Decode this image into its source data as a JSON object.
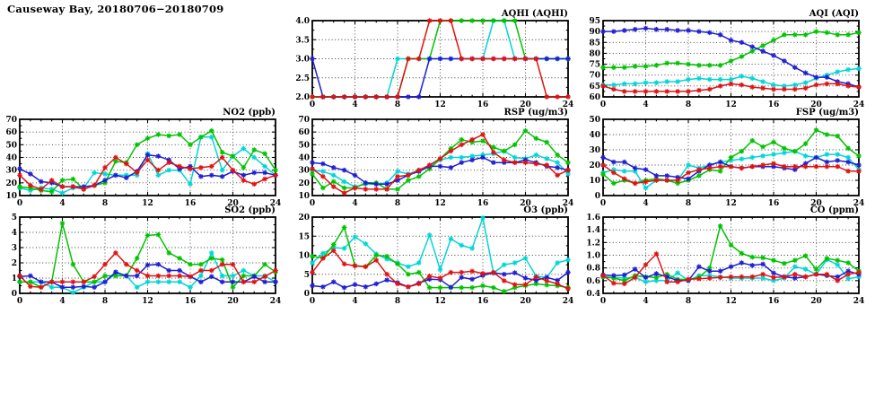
{
  "page": {
    "title": "Causeway Bay, 20180706−20180709"
  },
  "palette": {
    "blue": "#1f1fd1",
    "red": "#e01212",
    "green": "#00c300",
    "cyan": "#00d6d6"
  },
  "series_order": [
    "cyan",
    "green",
    "blue",
    "red"
  ],
  "x": {
    "lim": [
      0,
      24
    ],
    "ticks": [
      0,
      4,
      8,
      12,
      16,
      20,
      24
    ],
    "unit": "hour"
  },
  "chart_data": [
    {
      "id": "aqhi",
      "type": "line",
      "title": "AQHI (AQHI)",
      "ylim": [
        2,
        4
      ],
      "yticks": [
        2,
        2.5,
        3,
        3.5,
        4
      ],
      "ydec": 1,
      "series": {
        "blue": [
          3,
          2,
          2,
          2,
          2,
          2,
          2,
          2,
          2,
          2,
          2,
          3,
          3,
          3,
          3,
          3,
          3,
          3,
          3,
          3,
          3,
          3,
          3,
          3,
          3
        ],
        "red": [
          2,
          2,
          2,
          2,
          2,
          2,
          2,
          2,
          2,
          3,
          3,
          4,
          4,
          4,
          3,
          3,
          3,
          3,
          3,
          3,
          3,
          3,
          2,
          2,
          2
        ],
        "green": [
          2,
          2,
          2,
          2,
          2,
          2,
          2,
          2,
          2,
          3,
          3,
          3,
          4,
          4,
          4,
          4,
          4,
          4,
          4,
          4,
          3,
          3,
          3,
          3,
          3
        ],
        "cyan": [
          2,
          2,
          2,
          2,
          2,
          2,
          2,
          2,
          3,
          3,
          3,
          3,
          3,
          3,
          3,
          3,
          3,
          4,
          4,
          3,
          3,
          3,
          3,
          3,
          3
        ]
      }
    },
    {
      "id": "aqi",
      "type": "line",
      "title": "AQI (AQI)",
      "ylim": [
        60,
        95
      ],
      "yticks": [
        60,
        65,
        70,
        75,
        80,
        85,
        90,
        95
      ],
      "ydec": 0,
      "series": {
        "blue": [
          90,
          90,
          90.5,
          91,
          91.5,
          91,
          91,
          90.5,
          90.5,
          90,
          89.5,
          88.5,
          86,
          85,
          83,
          81,
          79,
          76.5,
          73.5,
          71,
          69,
          69,
          67,
          66,
          64.5
        ],
        "red": [
          65,
          63.5,
          62.5,
          62.5,
          62.5,
          62.5,
          62.5,
          62.5,
          62.5,
          63,
          63.5,
          65,
          66,
          65.5,
          64.5,
          64,
          63.5,
          63.5,
          63.5,
          64,
          65.5,
          66,
          66,
          65,
          64.5
        ],
        "green": [
          73.5,
          73.5,
          73.5,
          74,
          74,
          74.5,
          75.5,
          75.5,
          75,
          74.5,
          74.5,
          74.5,
          76.5,
          78.5,
          81,
          83.5,
          86,
          88.5,
          88.5,
          88.5,
          90,
          89.5,
          88.5,
          88.5,
          89.5
        ],
        "cyan": [
          65.5,
          65.5,
          66,
          66,
          66.5,
          66.5,
          67,
          67,
          68,
          68.5,
          68,
          68,
          68,
          69.5,
          68.5,
          67,
          65.5,
          65,
          65.5,
          66.5,
          68.5,
          70,
          71.5,
          72.5,
          73
        ]
      }
    },
    {
      "id": "no2",
      "type": "line",
      "title": "NO2 (ppb)",
      "ylim": [
        10,
        70
      ],
      "yticks": [
        10,
        20,
        30,
        40,
        50,
        60,
        70
      ],
      "ydec": 0,
      "series": {
        "blue": [
          31,
          27,
          21,
          20,
          17,
          17,
          17,
          18,
          22,
          26,
          24,
          29,
          42,
          41,
          38,
          31,
          33,
          25,
          26,
          25,
          29,
          26,
          28,
          28,
          26
        ],
        "red": [
          26,
          18,
          15,
          22,
          17,
          17,
          15,
          18,
          32,
          40,
          35,
          28,
          38,
          30,
          36,
          33,
          31,
          32,
          33,
          40,
          30,
          22,
          19,
          23,
          26
        ],
        "green": [
          17,
          16,
          14,
          13,
          22,
          23,
          15,
          18,
          20,
          37,
          36,
          50,
          55,
          58,
          57,
          58,
          50,
          56,
          61,
          44,
          41,
          32,
          46,
          43,
          30
        ],
        "cyan": [
          16,
          14,
          16,
          15,
          12,
          16,
          16,
          28,
          27,
          26,
          26,
          26,
          43,
          26,
          30,
          30,
          19,
          56,
          56,
          30,
          41,
          47,
          40,
          33,
          26
        ]
      }
    },
    {
      "id": "rsp",
      "type": "line",
      "title": "RSP (ug/m3)",
      "ylim": [
        10,
        70
      ],
      "yticks": [
        10,
        20,
        30,
        40,
        50,
        60,
        70
      ],
      "ydec": 0,
      "series": {
        "blue": [
          36,
          35,
          32,
          30,
          26,
          20,
          19,
          19,
          22,
          26,
          29,
          33,
          33,
          32,
          36,
          38,
          40,
          36,
          36,
          36,
          38,
          36,
          33,
          32,
          30
        ],
        "red": [
          31,
          25,
          17,
          12,
          16,
          15,
          15,
          15,
          25,
          26,
          30,
          34,
          39,
          45,
          50,
          54,
          58,
          44,
          38,
          36,
          36,
          35,
          34,
          26,
          30
        ],
        "green": [
          27,
          16,
          21,
          16,
          16,
          20,
          20,
          15,
          15,
          22,
          25,
          31,
          39,
          47,
          54,
          52,
          53,
          48,
          45,
          50,
          61,
          55,
          52,
          42,
          36
        ],
        "cyan": [
          30,
          29,
          26,
          21,
          17,
          19,
          19,
          20,
          29,
          27,
          30,
          33,
          38,
          40,
          40,
          41,
          42,
          43,
          45,
          40,
          39,
          42,
          39,
          36,
          27
        ]
      }
    },
    {
      "id": "fsp",
      "type": "line",
      "title": "FSP (ug/m3)",
      "ylim": [
        0,
        50
      ],
      "yticks": [
        0,
        10,
        20,
        30,
        40,
        50
      ],
      "ydec": 0,
      "series": {
        "blue": [
          25,
          22,
          22,
          18,
          17,
          13,
          13,
          12,
          11,
          16,
          20,
          22,
          19,
          18,
          19,
          19,
          19,
          18,
          17,
          21,
          25,
          22,
          23,
          22,
          20
        ],
        "red": [
          20,
          15,
          11,
          8,
          9,
          10,
          10,
          10,
          15,
          17,
          18,
          19,
          19,
          18,
          19,
          20,
          21,
          19,
          19,
          19,
          19,
          19,
          19,
          16,
          16
        ],
        "green": [
          14,
          8,
          10,
          8,
          10,
          11,
          10,
          8,
          10,
          13,
          17,
          16,
          25,
          29,
          36,
          32,
          35,
          31,
          29,
          34,
          43,
          40,
          39,
          31,
          26
        ],
        "cyan": [
          15,
          17,
          16,
          16,
          5,
          10,
          10,
          10,
          20,
          18,
          20,
          22,
          23,
          24,
          25,
          26,
          27,
          28,
          29,
          26,
          25,
          27,
          27,
          25,
          17
        ]
      }
    },
    {
      "id": "so2",
      "type": "line",
      "title": "SO2 (ppb)",
      "ylim": [
        0,
        5
      ],
      "yticks": [
        0,
        1,
        2,
        3,
        4,
        5
      ],
      "ydec": 0,
      "series": {
        "blue": [
          1.1,
          1.15,
          0.75,
          0.75,
          0.4,
          0.4,
          0.45,
          0.4,
          0.75,
          1.4,
          1.15,
          1.15,
          1.85,
          1.9,
          1.5,
          1.5,
          1.1,
          0.75,
          1.1,
          0.75,
          0.75,
          0.75,
          1.1,
          0.75,
          0.75
        ],
        "red": [
          1.15,
          0.45,
          0.4,
          0.75,
          0.75,
          0.75,
          0.75,
          1.1,
          1.9,
          2.65,
          1.9,
          1.5,
          1.15,
          1.15,
          1.15,
          1.15,
          1.1,
          1.5,
          1.5,
          1.9,
          1.9,
          0.75,
          0.75,
          1.1,
          1.5
        ],
        "green": [
          0.75,
          0.75,
          0.4,
          0.75,
          4.6,
          1.9,
          0.75,
          0.75,
          1.15,
          1.15,
          1.15,
          2.3,
          3.8,
          3.85,
          2.65,
          2.3,
          1.9,
          1.9,
          2.3,
          2.2,
          0.4,
          1.15,
          1.15,
          1.9,
          1.4
        ],
        "cyan": [
          0.75,
          0.75,
          0.75,
          0.4,
          0.4,
          0.05,
          0.4,
          0.75,
          0.75,
          1.3,
          1.15,
          0.4,
          0.75,
          0.75,
          0.75,
          0.75,
          0.4,
          1.15,
          2.65,
          1.15,
          1.15,
          1.5,
          1.15,
          1.15,
          0.75
        ]
      }
    },
    {
      "id": "o3",
      "type": "line",
      "title": "O3 (ppb)",
      "ylim": [
        0,
        20
      ],
      "yticks": [
        0,
        5,
        10,
        15,
        20
      ],
      "ydec": 0,
      "series": {
        "blue": [
          2,
          1.7,
          3,
          1.5,
          2.3,
          1.7,
          2.5,
          3.5,
          2.8,
          1.7,
          2.7,
          3.7,
          3.6,
          1.6,
          4.2,
          3.7,
          4.7,
          5.4,
          5,
          5.4,
          4,
          3.4,
          4.2,
          3.4,
          5.5
        ],
        "red": [
          5.5,
          9.2,
          11.2,
          7.7,
          7.2,
          7,
          8.7,
          5,
          2.5,
          1.7,
          2.5,
          4.5,
          4,
          5.5,
          5.5,
          5.8,
          5.2,
          5.5,
          3.3,
          2.3,
          2.3,
          4.3,
          3.3,
          2.5,
          1.2
        ],
        "green": [
          9.7,
          9.3,
          12.8,
          17.3,
          7.3,
          7,
          10,
          9.7,
          7.7,
          5,
          5.5,
          1.5,
          1.5,
          1.5,
          1.5,
          1.5,
          2,
          1.5,
          0.5,
          1.5,
          2,
          2.5,
          2.2,
          2,
          1.5
        ],
        "cyan": [
          8,
          10.5,
          12,
          11.8,
          14.8,
          13,
          10.3,
          9,
          8,
          7,
          8,
          15.3,
          6.2,
          14.3,
          12.6,
          11.8,
          19.8,
          5.3,
          7.5,
          8,
          9.2,
          4.5,
          4.2,
          8,
          8.8
        ]
      }
    },
    {
      "id": "co",
      "type": "line",
      "title": "CO (ppm)",
      "ylim": [
        0.4,
        1.6
      ],
      "yticks": [
        0.4,
        0.6,
        0.8,
        1.0,
        1.2,
        1.4,
        1.6
      ],
      "ydec": 1,
      "series": {
        "blue": [
          0.69,
          0.68,
          0.69,
          0.78,
          0.65,
          0.71,
          0.66,
          0.6,
          0.6,
          0.82,
          0.75,
          0.75,
          0.82,
          0.88,
          0.84,
          0.86,
          0.72,
          0.66,
          0.64,
          0.66,
          0.7,
          0.68,
          0.66,
          0.75,
          0.7
        ],
        "red": [
          0.68,
          0.56,
          0.55,
          0.65,
          0.85,
          1.02,
          0.58,
          0.58,
          0.62,
          0.63,
          0.64,
          0.65,
          0.66,
          0.66,
          0.66,
          0.7,
          0.65,
          0.66,
          0.7,
          0.66,
          0.7,
          0.7,
          0.6,
          0.7,
          0.73
        ],
        "green": [
          0.66,
          0.64,
          0.6,
          0.68,
          0.66,
          0.65,
          0.7,
          0.62,
          0.62,
          0.65,
          0.8,
          1.46,
          1.16,
          1.03,
          0.97,
          0.96,
          0.92,
          0.87,
          0.92,
          0.99,
          0.78,
          0.95,
          0.92,
          0.88,
          0.75
        ],
        "cyan": [
          0.66,
          0.65,
          0.64,
          0.65,
          0.58,
          0.6,
          0.6,
          0.72,
          0.6,
          0.68,
          0.68,
          0.66,
          0.64,
          0.64,
          0.64,
          0.64,
          0.6,
          0.64,
          0.82,
          0.78,
          0.7,
          0.93,
          0.85,
          0.63,
          0.66
        ]
      }
    }
  ]
}
